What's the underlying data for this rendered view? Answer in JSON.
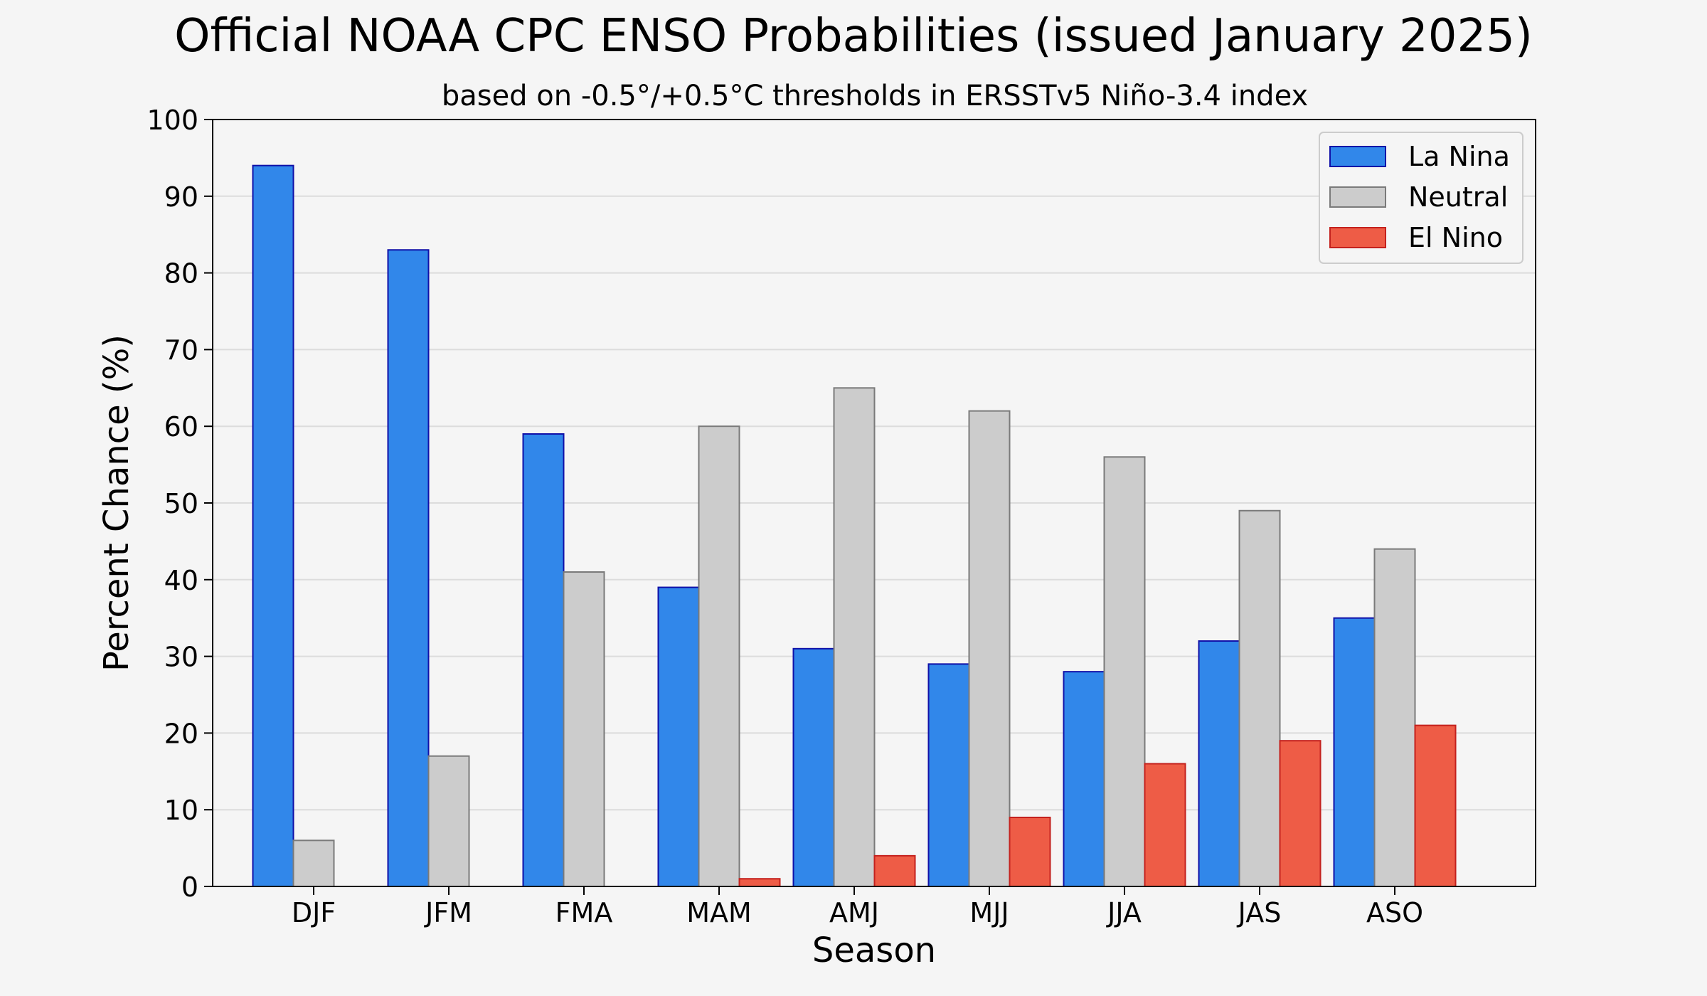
{
  "chart_data": {
    "type": "bar",
    "title": "Official NOAA CPC ENSO Probabilities (issued January 2025)",
    "subtitle": "based on -0.5°/+0.5°C thresholds in ERSSTv5 Niño-3.4 index",
    "xlabel": "Season",
    "ylabel": "Percent Chance (%)",
    "ylim": [
      0,
      100
    ],
    "yticks": [
      0,
      10,
      20,
      30,
      40,
      50,
      60,
      70,
      80,
      90,
      100
    ],
    "grid": true,
    "legend_position": "top-right",
    "categories": [
      "DJF",
      "JFM",
      "FMA",
      "MAM",
      "AMJ",
      "MJJ",
      "JJA",
      "JAS",
      "ASO"
    ],
    "series": [
      {
        "name": "La Nina",
        "values": [
          94,
          83,
          59,
          39,
          31,
          29,
          28,
          32,
          35
        ],
        "fill": "#3187ea",
        "stroke": "#1010a8"
      },
      {
        "name": "Neutral",
        "values": [
          6,
          17,
          41,
          60,
          65,
          62,
          56,
          49,
          44
        ],
        "fill": "#cccccc",
        "stroke": "#7a7a7a"
      },
      {
        "name": "El Nino",
        "values": [
          0,
          0,
          0,
          1,
          4,
          9,
          16,
          19,
          21
        ],
        "fill": "#ee5c46",
        "stroke": "#c4211d"
      }
    ]
  }
}
